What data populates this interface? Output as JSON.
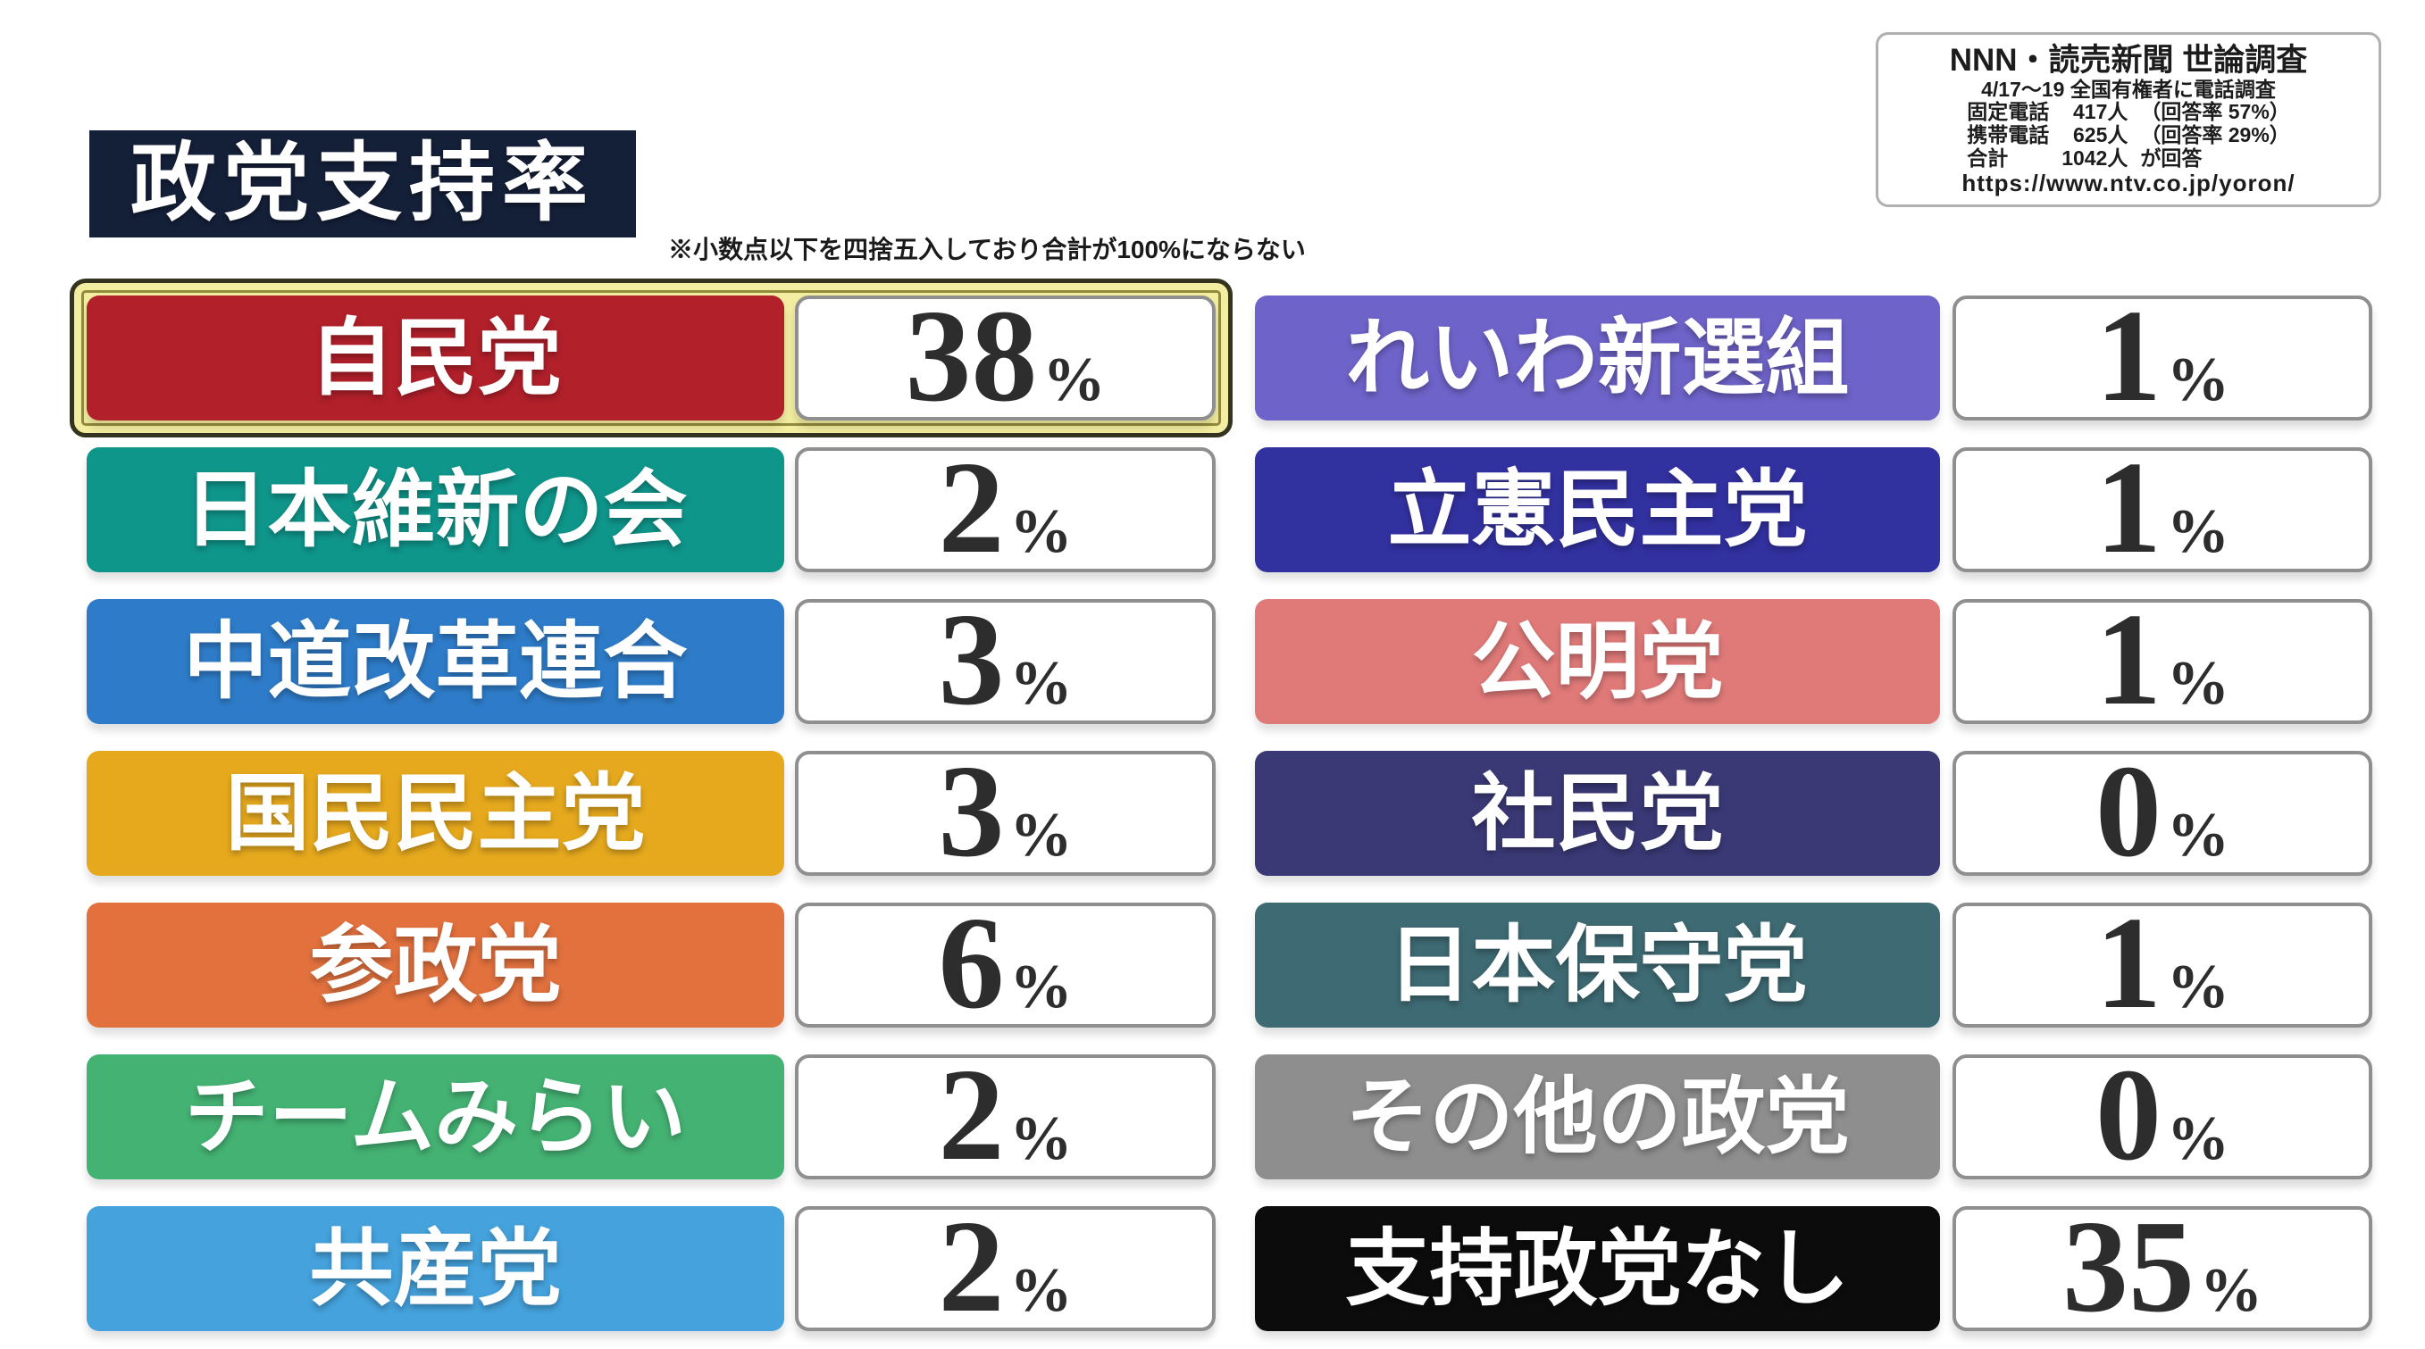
{
  "title": "政党支持率",
  "footnote": "※小数点以下を四捨五入しており合計が100%にならない",
  "unit": "%",
  "info": {
    "title": "NNN・読売新聞 世論調査",
    "subtitle": "4/17〜19 全国有権者に電話調査",
    "stats": [
      {
        "label": "固定電話",
        "value": "417人",
        "note": "（回答率 57%）"
      },
      {
        "label": "携帯電話",
        "value": "625人",
        "note": "（回答率 29%）"
      },
      {
        "label": "合計",
        "value": "1042人",
        "note": "が回答"
      }
    ],
    "url": "https://www.ntv.co.jp/yoron/"
  },
  "colors": {
    "title_box": "#141f38",
    "value_box_border": "#8f8f8f",
    "highlight_outer": "#34331f",
    "highlight_fill": "#f2eda0",
    "highlight_ring": "#938b3c"
  },
  "columns": {
    "left": [
      {
        "name": "自民党",
        "value": "38",
        "color": "#b2202a",
        "highlight": true
      },
      {
        "name": "日本維新の会",
        "value": "2",
        "color": "#0f968b"
      },
      {
        "name": "中道改革連合",
        "value": "3",
        "color": "#2e7cc9"
      },
      {
        "name": "国民民主党",
        "value": "3",
        "color": "#e6a91e"
      },
      {
        "name": "参政党",
        "value": "6",
        "color": "#e2713e"
      },
      {
        "name": "チームみらい",
        "value": "2",
        "color": "#44b273"
      },
      {
        "name": "共産党",
        "value": "2",
        "color": "#45a2dc"
      }
    ],
    "right": [
      {
        "name": "れいわ新選組",
        "value": "1",
        "color": "#6e63c9"
      },
      {
        "name": "立憲民主党",
        "value": "1",
        "color": "#3231a0"
      },
      {
        "name": "公明党",
        "value": "1",
        "color": "#e07a79"
      },
      {
        "name": "社民党",
        "value": "0",
        "color": "#3a3976"
      },
      {
        "name": "日本保守党",
        "value": "1",
        "color": "#3e6a73"
      },
      {
        "name": "その他の政党",
        "value": "0",
        "color": "#8e8e8e"
      },
      {
        "name": "支持政党なし",
        "value": "35",
        "color": "#0c0c0c"
      }
    ]
  },
  "chart_data": {
    "type": "table",
    "title": "政党支持率",
    "categories": [
      "自民党",
      "日本維新の会",
      "中道改革連合",
      "国民民主党",
      "参政党",
      "チームみらい",
      "共産党",
      "れいわ新選組",
      "立憲民主党",
      "公明党",
      "社民党",
      "日本保守党",
      "その他の政党",
      "支持政党なし"
    ],
    "values": [
      38,
      2,
      3,
      3,
      6,
      2,
      2,
      1,
      1,
      1,
      0,
      1,
      0,
      35
    ],
    "unit": "%",
    "note": "※小数点以下を四捨五入しており合計が100%にならない",
    "source": "NNN・読売新聞 世論調査 4/17〜19 全国有権者に電話調査 固定電話417人（回答率57%） 携帯電話625人（回答率29%） 合計1042人が回答"
  }
}
